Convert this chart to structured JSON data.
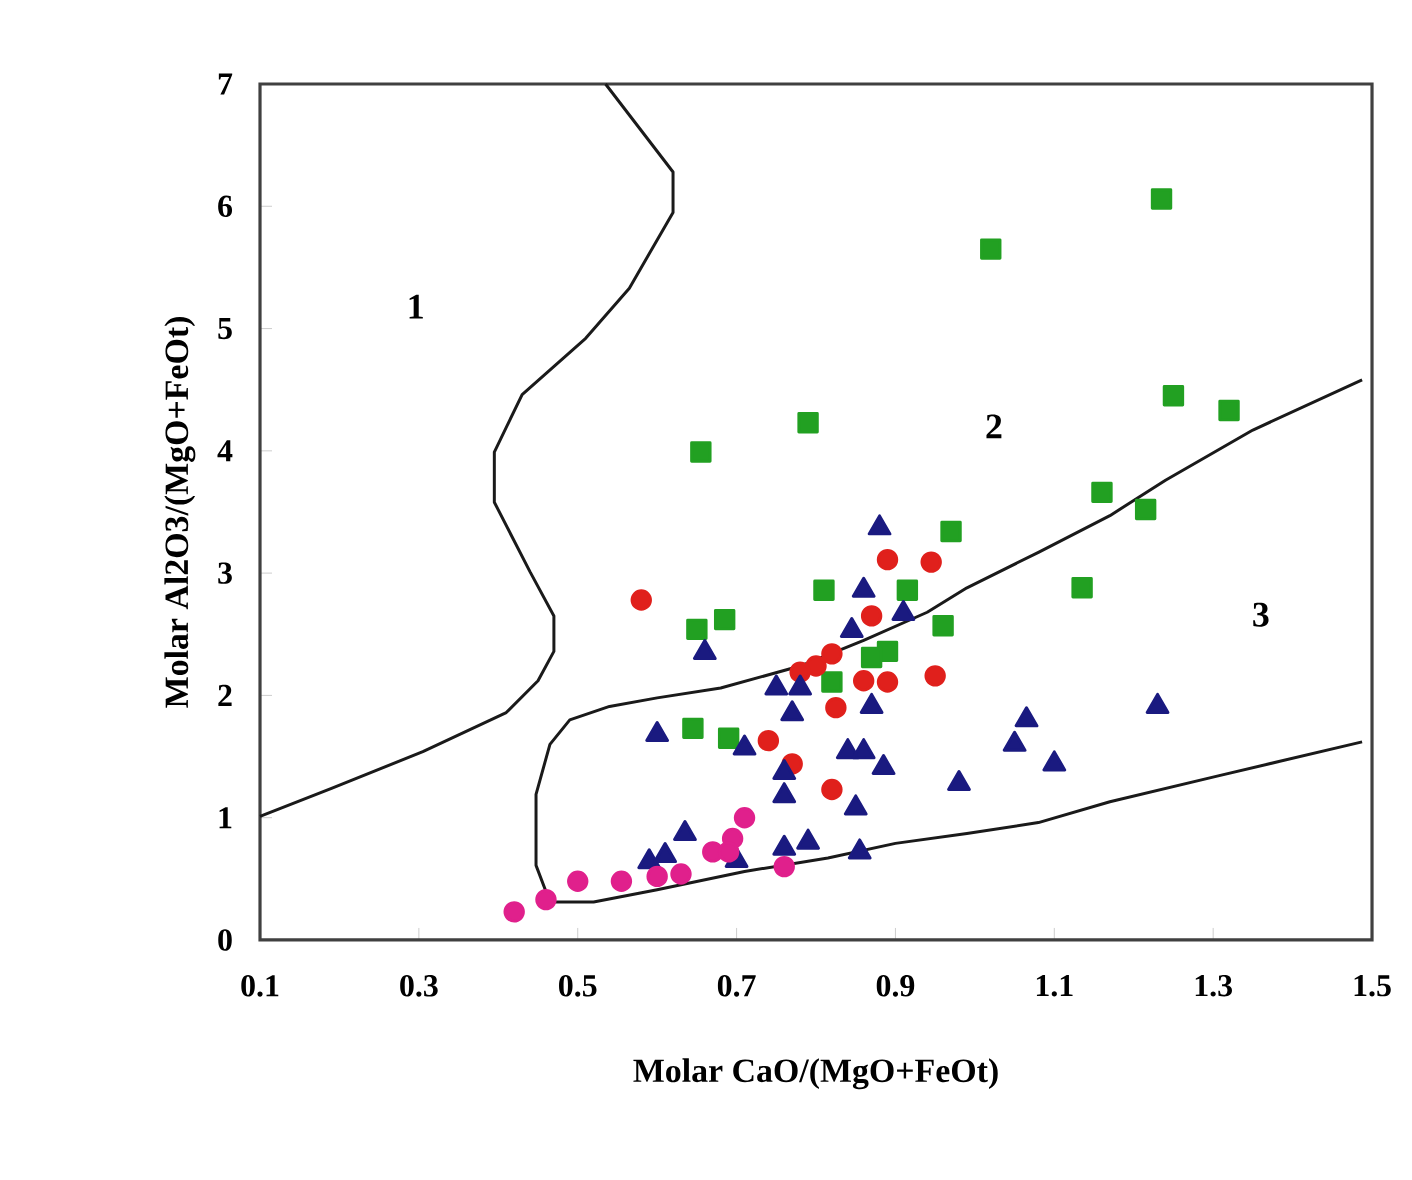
{
  "chart_data": {
    "type": "scatter",
    "xlabel": "Molar CaO/(MgO+FeOt)",
    "ylabel": "Molar Al2O3/(MgO+FeOt)",
    "xlim": [
      0.1,
      1.5
    ],
    "ylim": [
      0,
      7
    ],
    "xticks": [
      0.1,
      0.3,
      0.5,
      0.7,
      0.9,
      1.1,
      1.3,
      1.5
    ],
    "yticks": [
      0,
      1,
      2,
      3,
      4,
      5,
      6,
      7
    ],
    "grid": false,
    "annotations": [
      "1",
      "2",
      "3"
    ],
    "series": [
      {
        "marker": "square",
        "color": "#22a022",
        "x": [
          1.235,
          1.02,
          0.79,
          0.655,
          1.25,
          1.32,
          1.16,
          1.215,
          0.97,
          1.135,
          0.81,
          0.915,
          0.685,
          0.65,
          0.96,
          0.89,
          0.87,
          0.82,
          0.645,
          0.69
        ],
        "values": [
          6.06,
          5.65,
          4.23,
          3.99,
          4.45,
          4.33,
          3.66,
          3.52,
          3.34,
          2.88,
          2.86,
          2.86,
          2.62,
          2.54,
          2.57,
          2.36,
          2.31,
          2.11,
          1.73,
          1.65
        ]
      },
      {
        "marker": "circle",
        "color": "#e0201c",
        "x": [
          0.58,
          0.89,
          0.945,
          0.87,
          0.82,
          0.8,
          0.78,
          0.86,
          0.89,
          0.95,
          0.825,
          0.74,
          0.77,
          0.82
        ],
        "values": [
          2.78,
          3.11,
          3.09,
          2.65,
          2.34,
          2.24,
          2.19,
          2.12,
          2.11,
          2.16,
          1.9,
          1.63,
          1.44,
          1.23
        ]
      },
      {
        "marker": "triangle",
        "color": "#1a1a80",
        "x": [
          0.88,
          0.86,
          0.845,
          0.91,
          0.66,
          0.75,
          0.78,
          0.87,
          0.77,
          0.6,
          0.71,
          0.84,
          0.86,
          0.885,
          1.065,
          1.05,
          1.1,
          0.98,
          1.23,
          0.76,
          0.76,
          0.85,
          0.635,
          0.59,
          0.61,
          0.7,
          0.76,
          0.79,
          0.855
        ],
        "values": [
          3.37,
          2.86,
          2.53,
          2.67,
          2.35,
          2.06,
          2.06,
          1.91,
          1.85,
          1.68,
          1.57,
          1.54,
          1.54,
          1.41,
          1.8,
          1.6,
          1.44,
          1.28,
          1.91,
          1.37,
          1.18,
          1.08,
          0.87,
          0.64,
          0.69,
          0.65,
          0.75,
          0.8,
          0.72
        ]
      },
      {
        "marker": "circle",
        "color": "#e0208c",
        "x": [
          0.42,
          0.46,
          0.5,
          0.555,
          0.6,
          0.63,
          0.67,
          0.695,
          0.71,
          0.69,
          0.76
        ],
        "values": [
          0.23,
          0.33,
          0.48,
          0.48,
          0.52,
          0.54,
          0.72,
          0.83,
          1.0,
          0.72,
          0.6
        ]
      },
      {
        "type": "line",
        "marker": "none",
        "color": "#1a1a1a",
        "x": [
          0.535,
          0.62,
          0.62,
          0.565,
          0.51,
          0.43,
          0.395,
          0.395,
          0.44,
          0.47,
          0.47,
          0.45,
          0.41,
          0.305,
          0.19,
          0.1
        ],
        "values": [
          7,
          6.28,
          5.95,
          5.33,
          4.92,
          4.46,
          3.99,
          3.58,
          3.01,
          2.65,
          2.36,
          2.12,
          1.86,
          1.54,
          1.24,
          1.01
        ]
      },
      {
        "type": "line",
        "marker": "none",
        "color": "#1a1a1a",
        "x": [
          1.4875,
          1.35,
          1.24,
          1.17,
          1.08,
          0.99,
          0.94,
          0.86,
          0.78,
          0.68,
          0.6,
          0.54,
          0.49,
          0.465,
          0.4475,
          0.4475,
          0.465,
          0.52,
          0.6,
          0.71,
          0.815,
          0.9,
          0.99,
          1.08,
          1.17,
          1.305,
          1.4875
        ],
        "values": [
          4.58,
          4.17,
          3.76,
          3.47,
          3.17,
          2.88,
          2.68,
          2.45,
          2.24,
          2.06,
          1.98,
          1.91,
          1.8,
          1.6,
          1.19,
          0.61,
          0.31,
          0.31,
          0.41,
          0.56,
          0.67,
          0.79,
          0.87,
          0.96,
          1.13,
          1.34,
          1.62
        ]
      }
    ]
  }
}
